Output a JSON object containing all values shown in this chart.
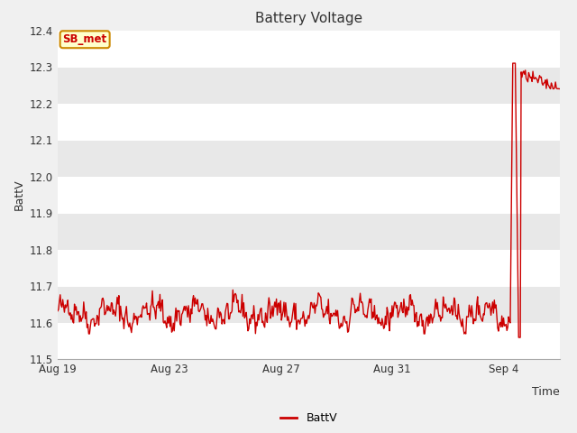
{
  "title": "Battery Voltage",
  "xlabel": "Time",
  "ylabel": "BattV",
  "ylim": [
    11.5,
    12.4
  ],
  "yticks": [
    11.5,
    11.6,
    11.7,
    11.8,
    11.9,
    12.0,
    12.1,
    12.2,
    12.3,
    12.4
  ],
  "line_color": "#cc0000",
  "line_width": 1.0,
  "bg_color": "#f0f0f0",
  "plot_bg_color": "#f0f0f0",
  "legend_label": "BattV",
  "annotation_text": "SB_met",
  "annotation_box_color": "#ffffcc",
  "annotation_box_edge": "#cc8800",
  "annotation_text_color": "#cc0000",
  "x_tick_labels": [
    "Aug 19",
    "Aug 23",
    "Aug 27",
    "Aug 31",
    "Sep 4"
  ],
  "x_tick_positions": [
    0,
    4,
    8,
    12,
    16
  ],
  "total_days": 18,
  "seed": 42,
  "band_colors": [
    "#ffffff",
    "#e8e8e8"
  ]
}
